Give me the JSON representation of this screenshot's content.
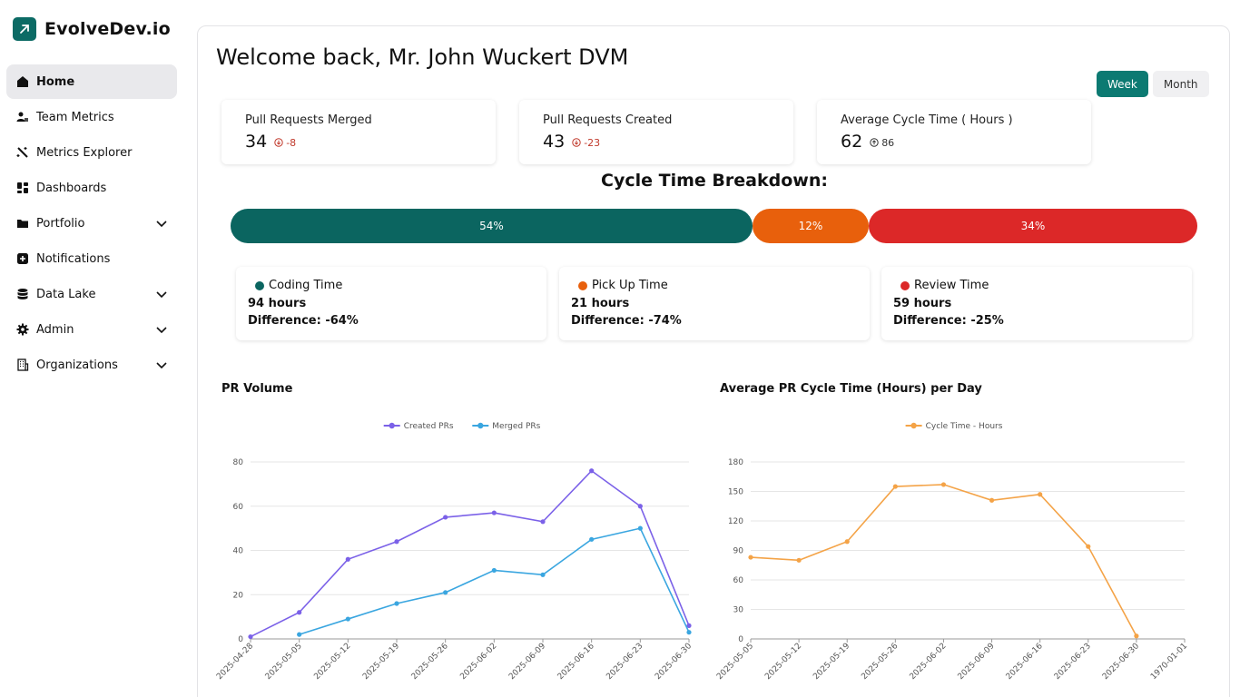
{
  "brand": {
    "name": "EvolveDev.io",
    "accent": "#0c6b65"
  },
  "sidebar": {
    "items": [
      {
        "label": "Home",
        "icon": "home-icon",
        "active": true
      },
      {
        "label": "Team Metrics",
        "icon": "team-icon"
      },
      {
        "label": "Metrics Explorer",
        "icon": "wand-icon"
      },
      {
        "label": "Dashboards",
        "icon": "dashboard-icon"
      },
      {
        "label": "Portfolio",
        "icon": "folder-icon",
        "expandable": true
      },
      {
        "label": "Notifications",
        "icon": "bell-plus-icon"
      },
      {
        "label": "Data Lake",
        "icon": "database-icon",
        "expandable": true
      },
      {
        "label": "Admin",
        "icon": "gear-icon",
        "expandable": true
      },
      {
        "label": "Organizations",
        "icon": "building-icon",
        "expandable": true
      }
    ]
  },
  "header": {
    "welcome": "Welcome back, Mr. John Wuckert DVM"
  },
  "toggle": {
    "week": "Week",
    "month": "Month",
    "selected": "Week"
  },
  "stats": [
    {
      "label": "Pull Requests Merged",
      "value": "34",
      "delta": "-8",
      "direction": "down"
    },
    {
      "label": "Pull Requests Created",
      "value": "43",
      "delta": "-23",
      "direction": "down"
    },
    {
      "label": "Average Cycle Time ( Hours )",
      "value": "62",
      "delta": "86",
      "direction": "up"
    }
  ],
  "breakdown": {
    "title": "Cycle Time Breakdown:",
    "segments": [
      {
        "label": "54%",
        "value": 54,
        "color": "#0b6560"
      },
      {
        "label": "12%",
        "value": 12,
        "color": "#e8600c"
      },
      {
        "label": "34%",
        "value": 34,
        "color": "#dc2828"
      }
    ],
    "cards": [
      {
        "name": "Coding Time",
        "hours": "94 hours",
        "diff": "Difference: -64%",
        "color": "#0b6560"
      },
      {
        "name": "Pick Up Time",
        "hours": "21 hours",
        "diff": "Difference: -74%",
        "color": "#e8600c"
      },
      {
        "name": "Review Time",
        "hours": "59 hours",
        "diff": "Difference: -25%",
        "color": "#dc2828"
      }
    ]
  },
  "chart_data": [
    {
      "type": "line",
      "title": "PR Volume",
      "x": [
        "2025-04-28",
        "2025-05-05",
        "2025-05-12",
        "2025-05-19",
        "2025-05-26",
        "2025-06-02",
        "2025-06-09",
        "2025-06-16",
        "2025-06-23",
        "2025-06-30"
      ],
      "series": [
        {
          "name": "Created PRs",
          "color": "#7b61e8",
          "values": [
            1,
            12,
            36,
            44,
            55,
            57,
            53,
            76,
            60,
            6
          ]
        },
        {
          "name": "Merged PRs",
          "color": "#3aa6e0",
          "values": [
            null,
            2,
            9,
            16,
            21,
            31,
            29,
            45,
            50,
            3
          ]
        }
      ],
      "yticks": [
        0,
        20,
        40,
        60,
        80
      ],
      "ylim": [
        0,
        80
      ],
      "grid": true,
      "legend": "top"
    },
    {
      "type": "line",
      "title": "Average PR Cycle Time (Hours) per Day",
      "x": [
        "2025-05-05",
        "2025-05-12",
        "2025-05-19",
        "2025-05-26",
        "2025-06-02",
        "2025-06-09",
        "2025-06-16",
        "2025-06-23",
        "2025-06-30",
        "1970-01-01"
      ],
      "series": [
        {
          "name": "Cycle Time - Hours",
          "color": "#f4a347",
          "values": [
            83,
            80,
            99,
            155,
            157,
            141,
            147,
            94,
            3,
            null
          ]
        }
      ],
      "yticks": [
        0,
        30,
        60,
        90,
        120,
        150,
        180
      ],
      "ylim": [
        0,
        180
      ],
      "grid": true,
      "legend": "top"
    }
  ]
}
